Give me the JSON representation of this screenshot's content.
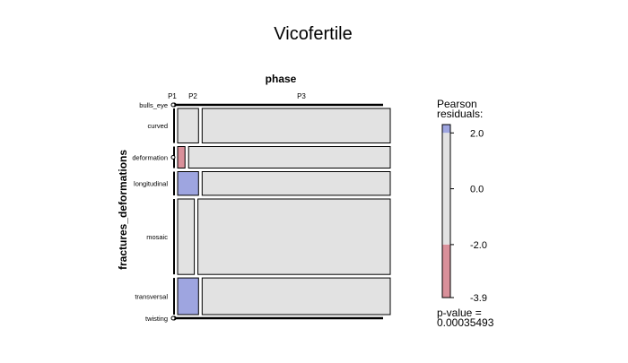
{
  "chart_data": {
    "type": "mosaic",
    "title": "Vicofertile",
    "xlabel": "phase",
    "ylabel": "fractures_deformations",
    "columns": [
      "P1",
      "P2",
      "P3"
    ],
    "rows": [
      "bulls_eye",
      "curved",
      "deformation",
      "longitudinal",
      "mosaic",
      "transversal",
      "twisting"
    ],
    "row_proportions": [
      0.0,
      0.16,
      0.1,
      0.11,
      0.35,
      0.17,
      0.0
    ],
    "cell_proportions": [
      [
        0.0,
        0.0,
        1.0
      ],
      [
        0.0,
        0.1,
        0.9
      ],
      [
        0.0,
        0.035,
        0.965
      ],
      [
        0.0,
        0.1,
        0.9
      ],
      [
        0.0,
        0.08,
        0.92
      ],
      [
        0.0,
        0.1,
        0.9
      ],
      [
        0.0,
        0.0,
        1.0
      ]
    ],
    "residual_classes": [
      [
        null,
        null,
        null
      ],
      [
        null,
        "neutral",
        "neutral"
      ],
      [
        null,
        "negative",
        "neutral"
      ],
      [
        null,
        "positive",
        "neutral"
      ],
      [
        null,
        "neutral",
        "neutral"
      ],
      [
        null,
        "positive",
        "neutral"
      ],
      [
        null,
        null,
        null
      ]
    ],
    "legend": {
      "title_line1": "Pearson",
      "title_line2": "residuals:",
      "ticks": [
        2.0,
        0.0,
        -2.0,
        -3.9
      ],
      "tick_labels": [
        "2.0",
        "0.0",
        "-2.0",
        "-3.9"
      ],
      "range": [
        -3.9,
        2.3
      ],
      "pvalue_label": "p-value =",
      "pvalue": "0.00035493"
    },
    "colors": {
      "positive": "#9ea5e0",
      "neutral": "#e2e2e2",
      "negative": "#d9909a",
      "border": "#000000"
    }
  }
}
